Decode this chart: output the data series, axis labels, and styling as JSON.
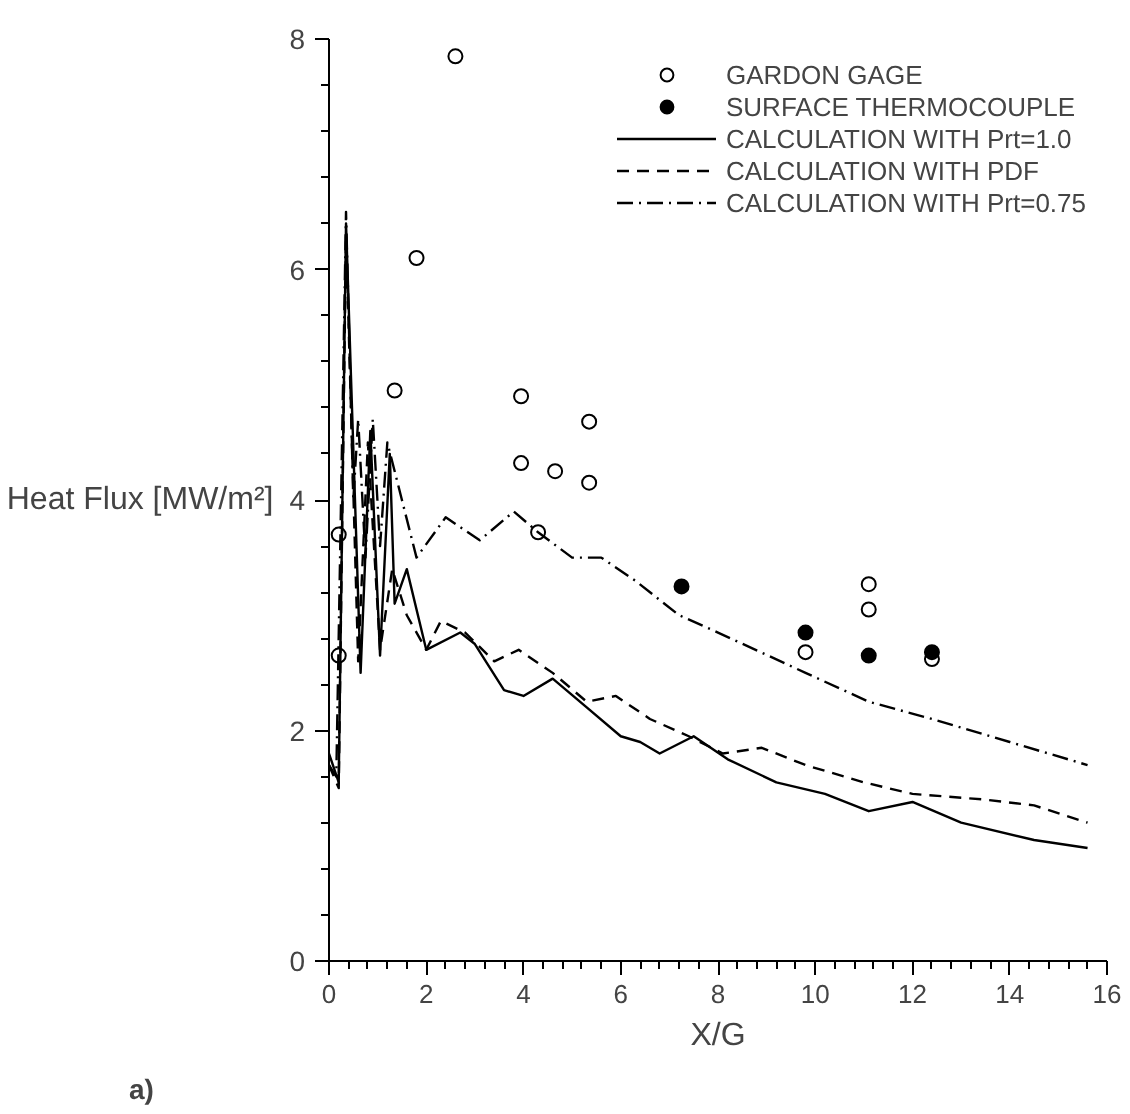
{
  "chart_data": {
    "type": "line",
    "xlabel": "X/G",
    "ylabel": "Heat Flux [MW/m²]",
    "xlim": [
      0,
      16
    ],
    "ylim": [
      0,
      8
    ],
    "xticks": [
      0,
      2,
      4,
      6,
      8,
      10,
      12,
      14,
      16
    ],
    "yticks": [
      0,
      2,
      4,
      6,
      8
    ],
    "grid": false,
    "legend": "top right",
    "annotations": [
      "a)"
    ],
    "series": [
      {
        "name": "GARDON GAGE",
        "type": "scatter",
        "marker": "circle",
        "color": "#ffffff",
        "x": [
          2.6,
          1.8,
          1.35,
          3.95,
          3.95,
          4.65,
          5.35,
          5.35,
          4.3,
          9.8,
          11.1,
          11.1,
          12.4,
          0.2,
          0.2
        ],
        "values": [
          7.85,
          6.1,
          4.95,
          4.9,
          4.32,
          4.25,
          4.68,
          4.15,
          3.72,
          2.68,
          3.27,
          3.05,
          2.62,
          3.7,
          2.65
        ]
      },
      {
        "name": "SURFACE THERMOCOUPLE",
        "type": "scatter",
        "marker": "circle",
        "color": "#000000",
        "x": [
          7.25,
          9.8,
          11.1,
          12.4
        ],
        "values": [
          3.25,
          2.85,
          2.65,
          2.68
        ]
      },
      {
        "name": "CALCULATION WITH Prt=1.0",
        "line_style": "solid",
        "color": "#000000",
        "x": [
          0,
          0.2,
          0.35,
          0.65,
          0.85,
          1.05,
          1.25,
          1.35,
          1.6,
          2.0,
          2.7,
          3.0,
          3.6,
          4.0,
          4.6,
          5.3,
          6.0,
          6.4,
          6.8,
          7.5,
          8.2,
          9.2,
          10.2,
          11.1,
          12.0,
          13.0,
          14.5,
          15.6
        ],
        "values": [
          1.8,
          1.55,
          6.4,
          2.5,
          4.6,
          2.65,
          4.4,
          3.1,
          3.4,
          2.7,
          2.85,
          2.75,
          2.35,
          2.3,
          2.45,
          2.2,
          1.95,
          1.9,
          1.8,
          1.95,
          1.75,
          1.55,
          1.45,
          1.3,
          1.38,
          1.2,
          1.05,
          0.98
        ]
      },
      {
        "name": "CALCULATION WITH PDF",
        "line_style": "dashed",
        "color": "#000000",
        "x": [
          0,
          0.2,
          0.35,
          0.6,
          0.8,
          1.05,
          1.3,
          1.6,
          2.0,
          2.3,
          2.8,
          3.4,
          3.9,
          4.6,
          5.3,
          5.9,
          6.6,
          7.4,
          8.1,
          8.9,
          9.8,
          11.0,
          12.0,
          13.5,
          14.5,
          15.6
        ],
        "values": [
          1.7,
          1.5,
          6.3,
          2.6,
          4.5,
          2.7,
          3.4,
          3.0,
          2.7,
          2.95,
          2.85,
          2.6,
          2.7,
          2.5,
          2.25,
          2.3,
          2.1,
          1.95,
          1.8,
          1.85,
          1.7,
          1.55,
          1.45,
          1.4,
          1.35,
          1.2
        ]
      },
      {
        "name": "CALCULATION WITH Prt=0.75",
        "line_style": "dashdot",
        "color": "#000000",
        "x": [
          0,
          0.15,
          0.35,
          0.5,
          0.6,
          0.75,
          0.9,
          1.05,
          1.2,
          1.5,
          1.8,
          2.4,
          3.1,
          3.8,
          4.3,
          5.0,
          5.6,
          6.3,
          7.2,
          8.0,
          9.8,
          11.1,
          12.4,
          14.0,
          15.6
        ],
        "values": [
          1.7,
          1.6,
          6.5,
          4.0,
          4.7,
          3.5,
          4.7,
          3.6,
          4.5,
          4.0,
          3.5,
          3.85,
          3.65,
          3.9,
          3.72,
          3.5,
          3.5,
          3.3,
          3.0,
          2.85,
          2.5,
          2.25,
          2.1,
          1.9,
          1.7
        ]
      }
    ]
  }
}
